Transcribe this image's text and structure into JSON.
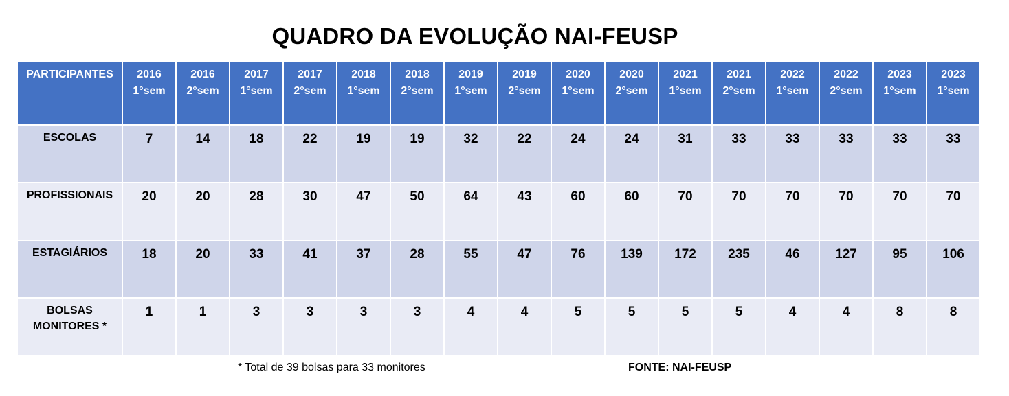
{
  "title": "QUADRO DA EVOLUÇÃO NAI-FEUSP",
  "table": {
    "corner_label": "PARTICIPANTES",
    "columns": [
      {
        "year": "2016",
        "sem": "1°sem"
      },
      {
        "year": "2016",
        "sem": "2°sem"
      },
      {
        "year": "2017",
        "sem": "1°sem"
      },
      {
        "year": "2017",
        "sem": "2°sem"
      },
      {
        "year": "2018",
        "sem": "1°sem"
      },
      {
        "year": "2018",
        "sem": "2°sem"
      },
      {
        "year": "2019",
        "sem": "1°sem"
      },
      {
        "year": "2019",
        "sem": "2°sem"
      },
      {
        "year": "2020",
        "sem": "1°sem"
      },
      {
        "year": "2020",
        "sem": "2°sem"
      },
      {
        "year": "2021",
        "sem": "1°sem"
      },
      {
        "year": "2021",
        "sem": "2°sem"
      },
      {
        "year": "2022",
        "sem": "1°sem"
      },
      {
        "year": "2022",
        "sem": "2°sem"
      },
      {
        "year": "2023",
        "sem": "1°sem"
      },
      {
        "year": "2023",
        "sem": "1°sem"
      }
    ],
    "rows": [
      {
        "label_lines": [
          "ESCOLAS"
        ],
        "values": [
          "7",
          "14",
          "18",
          "22",
          "19",
          "19",
          "32",
          "22",
          "24",
          "24",
          "31",
          "33",
          "33",
          "33",
          "33",
          "33"
        ]
      },
      {
        "label_lines": [
          "PROFISSIONAIS"
        ],
        "values": [
          "20",
          "20",
          "28",
          "30",
          "47",
          "50",
          "64",
          "43",
          "60",
          "60",
          "70",
          "70",
          "70",
          "70",
          "70",
          "70"
        ]
      },
      {
        "label_lines": [
          "ESTAGIÁRIOS"
        ],
        "values": [
          "18",
          "20",
          "33",
          "41",
          "37",
          "28",
          "55",
          "47",
          "76",
          "139",
          "172",
          "235",
          "46",
          "127",
          "95",
          "106"
        ]
      },
      {
        "label_lines": [
          "BOLSAS",
          "MONITORES *"
        ],
        "values": [
          "1",
          "1",
          "3",
          "3",
          "3",
          "3",
          "4",
          "4",
          "5",
          "5",
          "5",
          "5",
          "4",
          "4",
          "8",
          "8"
        ]
      }
    ]
  },
  "footnote": "* Total de 39 bolsas para 33 monitores",
  "source": "FONTE:  NAI-FEUSP",
  "colors": {
    "header_bg": "#4472c4",
    "row_dark": "#cfd5ea",
    "row_light": "#e9ebf5"
  }
}
